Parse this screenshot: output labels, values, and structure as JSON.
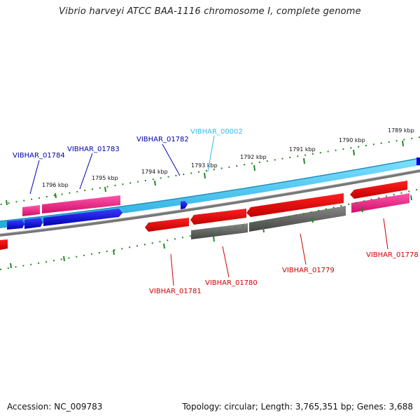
{
  "title": "Vibrio harveyi ATCC BAA-1116 chromosome I, complete genome",
  "accession": "Accession: NC_009783",
  "summary": "Topology: circular; Length: 3,765,351 bp; Genes: 3,688",
  "colors": {
    "forward_gene": "#0000dd",
    "reverse_gene": "#ee0000",
    "forward_cds": "#ee2288",
    "reverse_cds": "#ee2288",
    "highlight_gene": "#55ccff",
    "pseudo_gene": "#666666",
    "ticks": "#228822"
  },
  "ticks": [
    {
      "label": "1796 kbp"
    },
    {
      "label": "1795 kbp"
    },
    {
      "label": "1794 kbp"
    },
    {
      "label": "1793 kbp"
    },
    {
      "label": "1792 kbp"
    },
    {
      "label": "1791 kbp"
    },
    {
      "label": "1790 kbp"
    },
    {
      "label": "1789 kbp"
    }
  ],
  "genes_forward": [
    {
      "label": "VIBHAR_01784"
    },
    {
      "label": "VIBHAR_01783"
    },
    {
      "label": "VIBHAR_01782"
    },
    {
      "label": "VIBHAR_00002"
    }
  ],
  "genes_reverse": [
    {
      "label": "VIBHAR_01781"
    },
    {
      "label": "VIBHAR_01780"
    },
    {
      "label": "VIBHAR_01779"
    },
    {
      "label": "VIBHAR_01778"
    }
  ]
}
